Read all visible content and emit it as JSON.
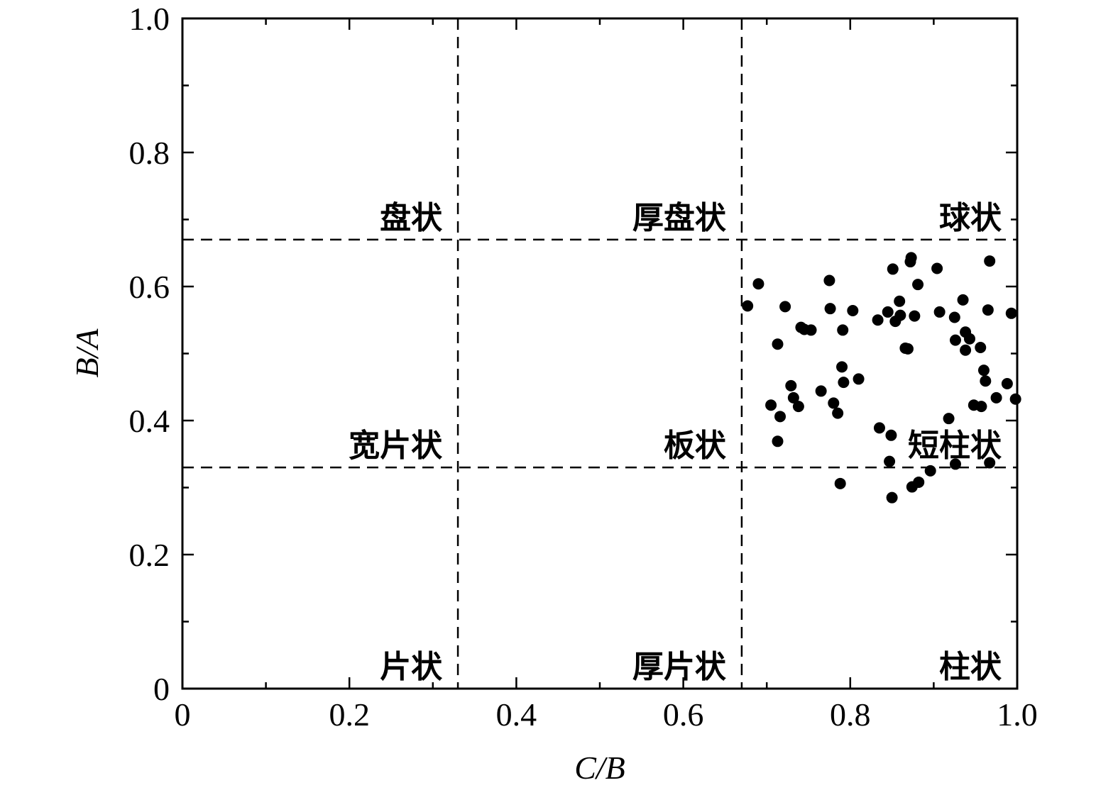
{
  "chart_data": {
    "type": "scatter",
    "xlabel": "C/B",
    "ylabel": "B/A",
    "xlim": [
      0,
      1.0
    ],
    "ylim": [
      0,
      1.0
    ],
    "x_ticks": [
      "0",
      "0.2",
      "0.4",
      "0.6",
      "0.8",
      "1.0"
    ],
    "y_ticks": [
      "0",
      "0.2",
      "0.4",
      "0.6",
      "0.8",
      "1.0"
    ],
    "grid": false,
    "divider_x": [
      0.33,
      0.67
    ],
    "divider_y": [
      0.33,
      0.67
    ],
    "region_labels": [
      {
        "text": "盘状",
        "x": 0.33,
        "y": 0.67
      },
      {
        "text": "厚盘状",
        "x": 0.67,
        "y": 0.67
      },
      {
        "text": "球状",
        "x": 1.0,
        "y": 0.67
      },
      {
        "text": "宽片状",
        "x": 0.33,
        "y": 0.33
      },
      {
        "text": "板状",
        "x": 0.67,
        "y": 0.33
      },
      {
        "text": "短柱状",
        "x": 1.0,
        "y": 0.33
      },
      {
        "text": "片状",
        "x": 0.33,
        "y": 0.0
      },
      {
        "text": "厚片状",
        "x": 0.67,
        "y": 0.0
      },
      {
        "text": "柱状",
        "x": 1.0,
        "y": 0.0
      }
    ],
    "points": [
      {
        "x": 0.677,
        "y": 0.571
      },
      {
        "x": 0.69,
        "y": 0.604
      },
      {
        "x": 0.705,
        "y": 0.423
      },
      {
        "x": 0.713,
        "y": 0.514
      },
      {
        "x": 0.713,
        "y": 0.369
      },
      {
        "x": 0.716,
        "y": 0.406
      },
      {
        "x": 0.722,
        "y": 0.57
      },
      {
        "x": 0.729,
        "y": 0.452
      },
      {
        "x": 0.732,
        "y": 0.434
      },
      {
        "x": 0.738,
        "y": 0.421
      },
      {
        "x": 0.741,
        "y": 0.539
      },
      {
        "x": 0.745,
        "y": 0.536
      },
      {
        "x": 0.753,
        "y": 0.535
      },
      {
        "x": 0.765,
        "y": 0.444
      },
      {
        "x": 0.775,
        "y": 0.609
      },
      {
        "x": 0.776,
        "y": 0.567
      },
      {
        "x": 0.78,
        "y": 0.426
      },
      {
        "x": 0.785,
        "y": 0.411
      },
      {
        "x": 0.788,
        "y": 0.306
      },
      {
        "x": 0.79,
        "y": 0.48
      },
      {
        "x": 0.791,
        "y": 0.535
      },
      {
        "x": 0.792,
        "y": 0.457
      },
      {
        "x": 0.803,
        "y": 0.564
      },
      {
        "x": 0.81,
        "y": 0.462
      },
      {
        "x": 0.833,
        "y": 0.55
      },
      {
        "x": 0.835,
        "y": 0.389
      },
      {
        "x": 0.845,
        "y": 0.562
      },
      {
        "x": 0.847,
        "y": 0.339
      },
      {
        "x": 0.849,
        "y": 0.378
      },
      {
        "x": 0.85,
        "y": 0.285
      },
      {
        "x": 0.851,
        "y": 0.626
      },
      {
        "x": 0.854,
        "y": 0.548
      },
      {
        "x": 0.859,
        "y": 0.578
      },
      {
        "x": 0.86,
        "y": 0.557
      },
      {
        "x": 0.866,
        "y": 0.508
      },
      {
        "x": 0.869,
        "y": 0.507
      },
      {
        "x": 0.872,
        "y": 0.637
      },
      {
        "x": 0.873,
        "y": 0.643
      },
      {
        "x": 0.874,
        "y": 0.301
      },
      {
        "x": 0.877,
        "y": 0.556
      },
      {
        "x": 0.881,
        "y": 0.603
      },
      {
        "x": 0.882,
        "y": 0.308
      },
      {
        "x": 0.896,
        "y": 0.325
      },
      {
        "x": 0.904,
        "y": 0.627
      },
      {
        "x": 0.907,
        "y": 0.562
      },
      {
        "x": 0.918,
        "y": 0.403
      },
      {
        "x": 0.925,
        "y": 0.554
      },
      {
        "x": 0.926,
        "y": 0.335
      },
      {
        "x": 0.926,
        "y": 0.52
      },
      {
        "x": 0.935,
        "y": 0.58
      },
      {
        "x": 0.938,
        "y": 0.505
      },
      {
        "x": 0.938,
        "y": 0.532
      },
      {
        "x": 0.943,
        "y": 0.522
      },
      {
        "x": 0.948,
        "y": 0.423
      },
      {
        "x": 0.956,
        "y": 0.509
      },
      {
        "x": 0.957,
        "y": 0.421
      },
      {
        "x": 0.96,
        "y": 0.475
      },
      {
        "x": 0.962,
        "y": 0.459
      },
      {
        "x": 0.965,
        "y": 0.565
      },
      {
        "x": 0.967,
        "y": 0.638
      },
      {
        "x": 0.967,
        "y": 0.337
      },
      {
        "x": 0.975,
        "y": 0.434
      },
      {
        "x": 0.988,
        "y": 0.455
      },
      {
        "x": 0.993,
        "y": 0.56
      },
      {
        "x": 0.998,
        "y": 0.432
      }
    ]
  }
}
